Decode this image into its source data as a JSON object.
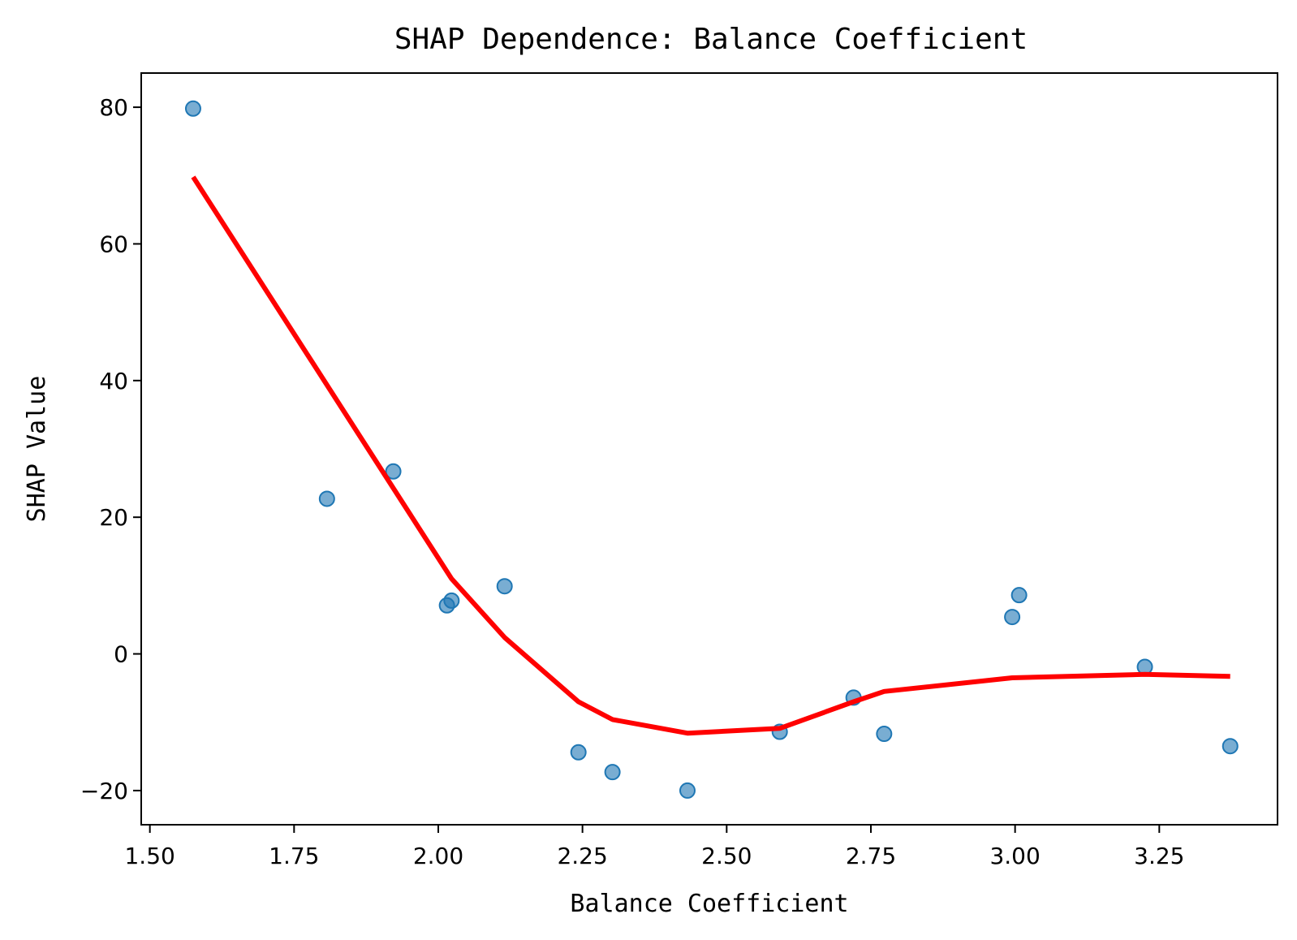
{
  "chart_data": {
    "type": "scatter",
    "title": "SHAP Dependence: Balance Coefficient",
    "xlabel": "Balance Coefficient",
    "ylabel": "SHAP Value",
    "xlim": [
      1.485,
      3.455
    ],
    "ylim": [
      -25,
      85
    ],
    "xticks": [
      1.5,
      1.75,
      2.0,
      2.25,
      2.5,
      2.75,
      3.0,
      3.25
    ],
    "xtick_labels": [
      "1.50",
      "1.75",
      "2.00",
      "2.25",
      "2.50",
      "2.75",
      "3.00",
      "3.25"
    ],
    "yticks": [
      -20,
      0,
      20,
      40,
      60,
      80
    ],
    "ytick_labels": [
      "−20",
      "0",
      "20",
      "40",
      "60",
      "80"
    ],
    "grid": false,
    "series": [
      {
        "type": "scatter",
        "color": "#1f77b4",
        "points": [
          {
            "x": 1.575,
            "y": 79.8
          },
          {
            "x": 1.807,
            "y": 22.7
          },
          {
            "x": 1.922,
            "y": 26.7
          },
          {
            "x": 2.015,
            "y": 7.1
          },
          {
            "x": 2.023,
            "y": 7.8
          },
          {
            "x": 2.115,
            "y": 9.9
          },
          {
            "x": 2.243,
            "y": -14.4
          },
          {
            "x": 2.302,
            "y": -17.3
          },
          {
            "x": 2.432,
            "y": -20.0
          },
          {
            "x": 2.592,
            "y": -11.4
          },
          {
            "x": 2.72,
            "y": -6.4
          },
          {
            "x": 2.773,
            "y": -11.7
          },
          {
            "x": 2.995,
            "y": 5.4
          },
          {
            "x": 3.007,
            "y": 8.6
          },
          {
            "x": 3.225,
            "y": -1.9
          },
          {
            "x": 3.373,
            "y": -13.5
          }
        ]
      },
      {
        "type": "line",
        "color": "#ff0000",
        "points": [
          {
            "x": 1.575,
            "y": 69.8
          },
          {
            "x": 2.023,
            "y": 11.0
          },
          {
            "x": 2.115,
            "y": 2.4
          },
          {
            "x": 2.243,
            "y": -7.0
          },
          {
            "x": 2.302,
            "y": -9.6
          },
          {
            "x": 2.432,
            "y": -11.6
          },
          {
            "x": 2.592,
            "y": -10.9
          },
          {
            "x": 2.72,
            "y": -7.0
          },
          {
            "x": 2.773,
            "y": -5.5
          },
          {
            "x": 2.995,
            "y": -3.5
          },
          {
            "x": 3.225,
            "y": -3.0
          },
          {
            "x": 3.373,
            "y": -3.3
          }
        ]
      }
    ]
  }
}
